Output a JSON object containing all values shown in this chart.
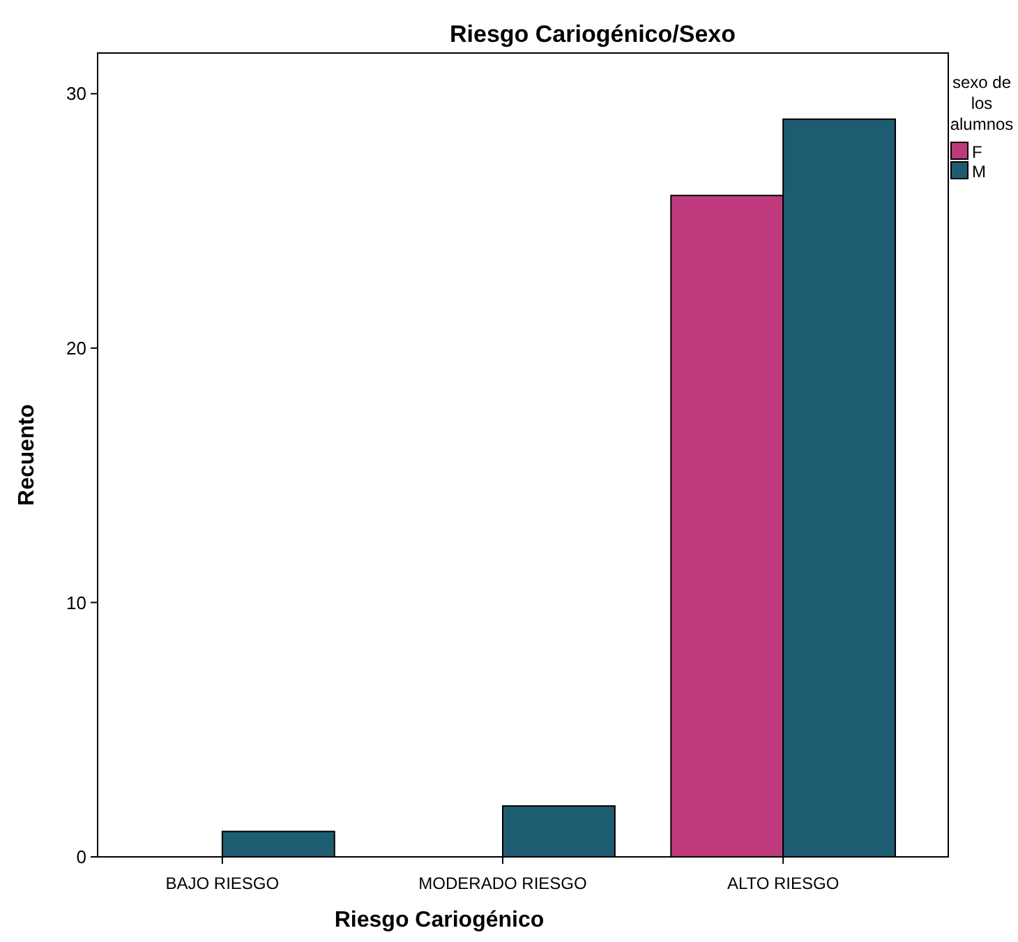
{
  "chart_data": {
    "type": "bar",
    "title": "Riesgo Cariogénico/Sexo",
    "xlabel": "Riesgo Cariogénico",
    "ylabel": "Recuento",
    "legend_title": "sexo de los alumnos",
    "categories": [
      "BAJO RIESGO",
      "MODERADO RIESGO",
      "ALTO RIESGO"
    ],
    "series": [
      {
        "name": "F",
        "color": "#be3a7c",
        "values": [
          null,
          null,
          26
        ]
      },
      {
        "name": "M",
        "color": "#1e5d71",
        "values": [
          1,
          2,
          29
        ]
      }
    ],
    "ylim": [
      0,
      31.6
    ],
    "yticks": [
      0,
      10,
      20,
      30
    ],
    "grid": false,
    "legend": "top right"
  }
}
